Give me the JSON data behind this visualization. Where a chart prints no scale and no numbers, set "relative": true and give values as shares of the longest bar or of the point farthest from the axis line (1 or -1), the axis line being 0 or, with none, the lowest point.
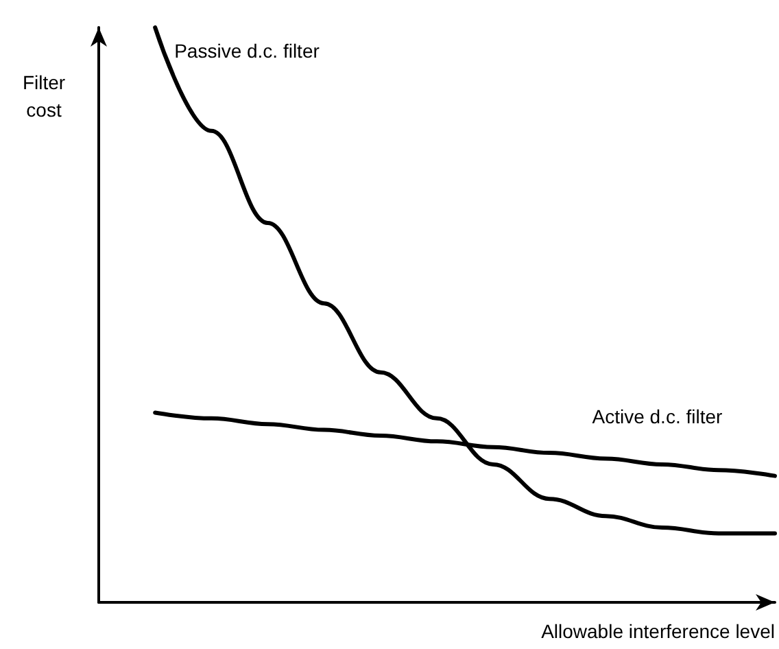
{
  "chart_data": {
    "type": "line",
    "relative": true,
    "xlabel": "Allowable interference level",
    "ylabel": "Filter cost",
    "categories": [
      null,
      null,
      null,
      null,
      null,
      null,
      null,
      null,
      null,
      null,
      null,
      null,
      null
    ],
    "marker": "none",
    "line_style": "solid",
    "grid": false,
    "legend": false,
    "series": [
      {
        "name": "Passive d.c. filter",
        "color": "#000000",
        "values": [
          null,
          1.0,
          0.82,
          0.66,
          0.52,
          0.4,
          0.32,
          0.24,
          0.18,
          0.15,
          0.13,
          0.12,
          0.12
        ]
      },
      {
        "name": "Active d.c. filter",
        "color": "#000000",
        "values": [
          null,
          0.33,
          0.32,
          0.31,
          0.3,
          0.29,
          0.28,
          0.27,
          0.26,
          0.25,
          0.24,
          0.23,
          0.22
        ]
      }
    ]
  }
}
